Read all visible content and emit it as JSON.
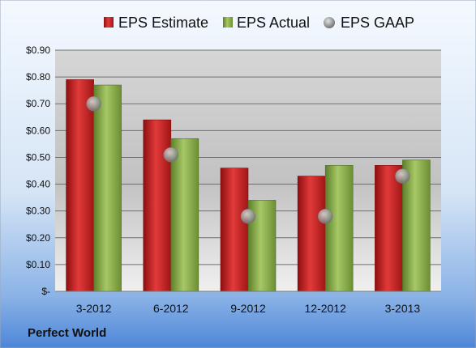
{
  "chart_data": {
    "type": "bar",
    "categories": [
      "3-2012",
      "6-2012",
      "9-2012",
      "12-2012",
      "3-2013"
    ],
    "series": [
      {
        "name": "EPS Estimate",
        "kind": "bar",
        "color": "#cc1f1f",
        "values": [
          0.79,
          0.64,
          0.46,
          0.43,
          0.47
        ]
      },
      {
        "name": "EPS Actual",
        "kind": "bar",
        "color": "#8db04a",
        "values": [
          0.77,
          0.57,
          0.34,
          0.47,
          0.49
        ]
      },
      {
        "name": "EPS GAAP",
        "kind": "marker",
        "color": "#9a9a9a",
        "values": [
          0.7,
          0.51,
          0.28,
          0.28,
          0.43
        ]
      }
    ],
    "y_ticks": [
      {
        "value": 0.0,
        "label": "$-"
      },
      {
        "value": 0.1,
        "label": "$0.10"
      },
      {
        "value": 0.2,
        "label": "$0.20"
      },
      {
        "value": 0.3,
        "label": "$0.30"
      },
      {
        "value": 0.4,
        "label": "$0.40"
      },
      {
        "value": 0.5,
        "label": "$0.50"
      },
      {
        "value": 0.6,
        "label": "$0.60"
      },
      {
        "value": 0.7,
        "label": "$0.70"
      },
      {
        "value": 0.8,
        "label": "$0.80"
      },
      {
        "value": 0.9,
        "label": "$0.90"
      }
    ],
    "ylim": [
      0,
      0.9
    ],
    "grid": true,
    "legend_position": "top",
    "title": "",
    "xlabel": "",
    "ylabel": ""
  },
  "company_name": "Perfect World"
}
